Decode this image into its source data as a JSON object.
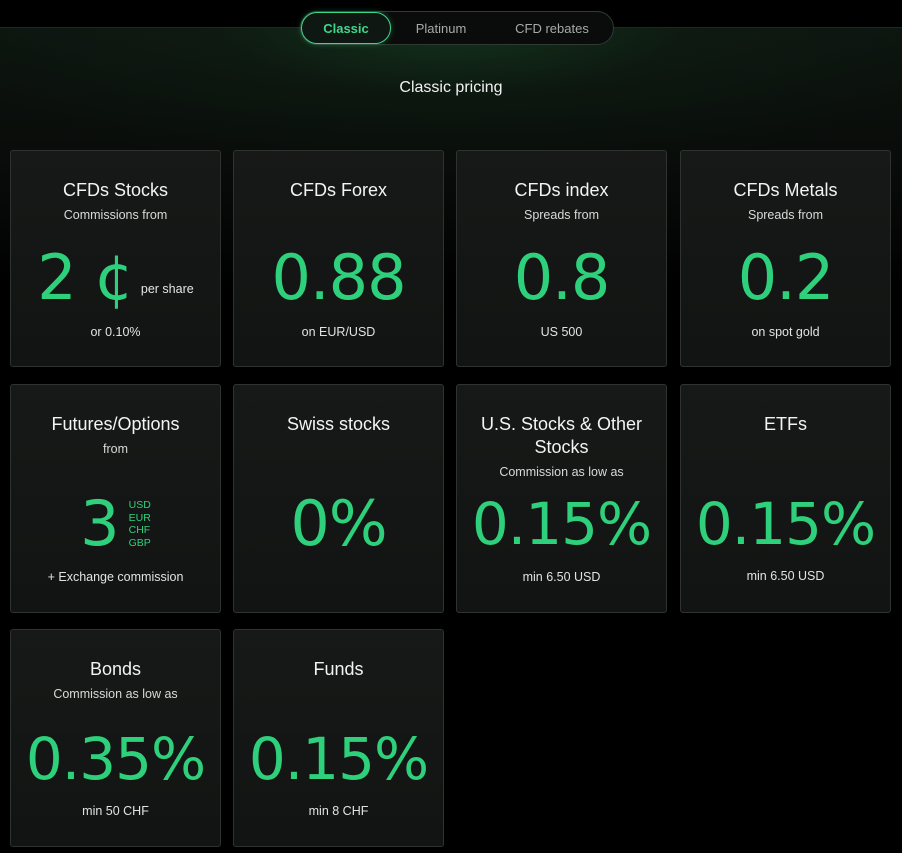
{
  "tabs": [
    {
      "label": "Classic",
      "active": true
    },
    {
      "label": "Platinum",
      "active": false
    },
    {
      "label": "CFD rebates",
      "active": false
    }
  ],
  "section_title": "Classic pricing",
  "colors": {
    "accent": "#2fd07c",
    "background": "#000000",
    "card": "#151716"
  },
  "cards": [
    {
      "title": "CFDs Stocks",
      "subtitle": "Commissions from",
      "value": "2 ¢",
      "value_suffix": "per share",
      "note": "or 0.10%"
    },
    {
      "title": "CFDs Forex",
      "subtitle": "",
      "value": "0.88",
      "note": "on EUR/USD"
    },
    {
      "title": "CFDs index",
      "subtitle": "Spreads from",
      "value": "0.8",
      "note": "US 500"
    },
    {
      "title": "CFDs Metals",
      "subtitle": "Spreads from",
      "value": "0.2",
      "note": "on spot gold"
    },
    {
      "title": "Futures/Options",
      "subtitle": "from",
      "value": "3",
      "currencies": [
        "USD",
        "EUR",
        "CHF",
        "GBP"
      ],
      "note": "+ Exchange commission"
    },
    {
      "title": "Swiss stocks",
      "subtitle": "",
      "value": "0%",
      "note": ""
    },
    {
      "title": "U.S. Stocks & Other Stocks",
      "subtitle": "Commission as low as",
      "value": "0.15%",
      "note": "min 6.50 USD"
    },
    {
      "title": "ETFs",
      "subtitle": "",
      "value": "0.15%",
      "note": "min 6.50 USD"
    },
    {
      "title": "Bonds",
      "subtitle": "Commission as low as",
      "value": "0.35%",
      "note": "min 50 CHF"
    },
    {
      "title": "Funds",
      "subtitle": "",
      "value": "0.15%",
      "note": "min 8 CHF"
    }
  ]
}
